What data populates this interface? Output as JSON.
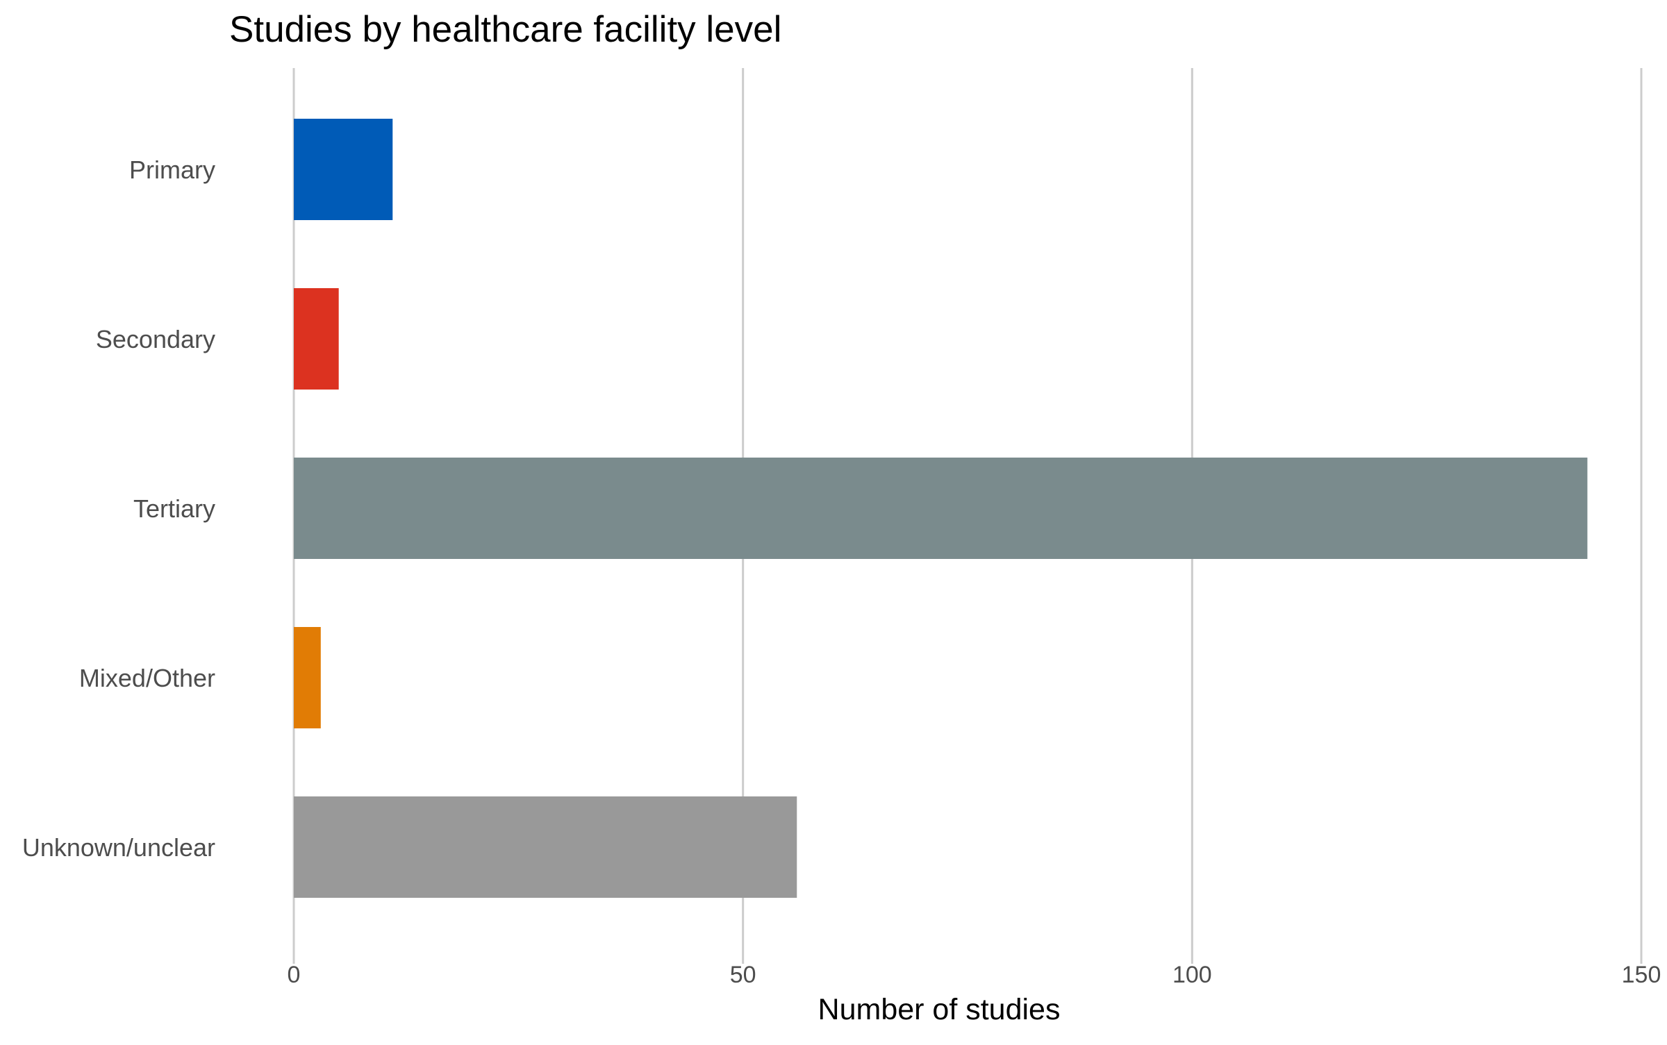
{
  "chart_data": {
    "type": "bar",
    "orientation": "horizontal",
    "title": "Studies by healthcare facility level",
    "xlabel": "Number of studies",
    "ylabel": "",
    "categories": [
      "Primary",
      "Secondary",
      "Tertiary",
      "Mixed/Other",
      "Unknown/unclear"
    ],
    "values": [
      11,
      5,
      144,
      3,
      56
    ],
    "colors": [
      "#005bb7",
      "#dc3220",
      "#7a8b8d",
      "#e17c05",
      "#999999"
    ],
    "xlim": [
      0,
      150
    ],
    "xticks": [
      "0",
      "50",
      "100",
      "150"
    ],
    "xtick_values": [
      0,
      50,
      100,
      150
    ],
    "grid": "vertical major gridlines",
    "legend": "none"
  }
}
